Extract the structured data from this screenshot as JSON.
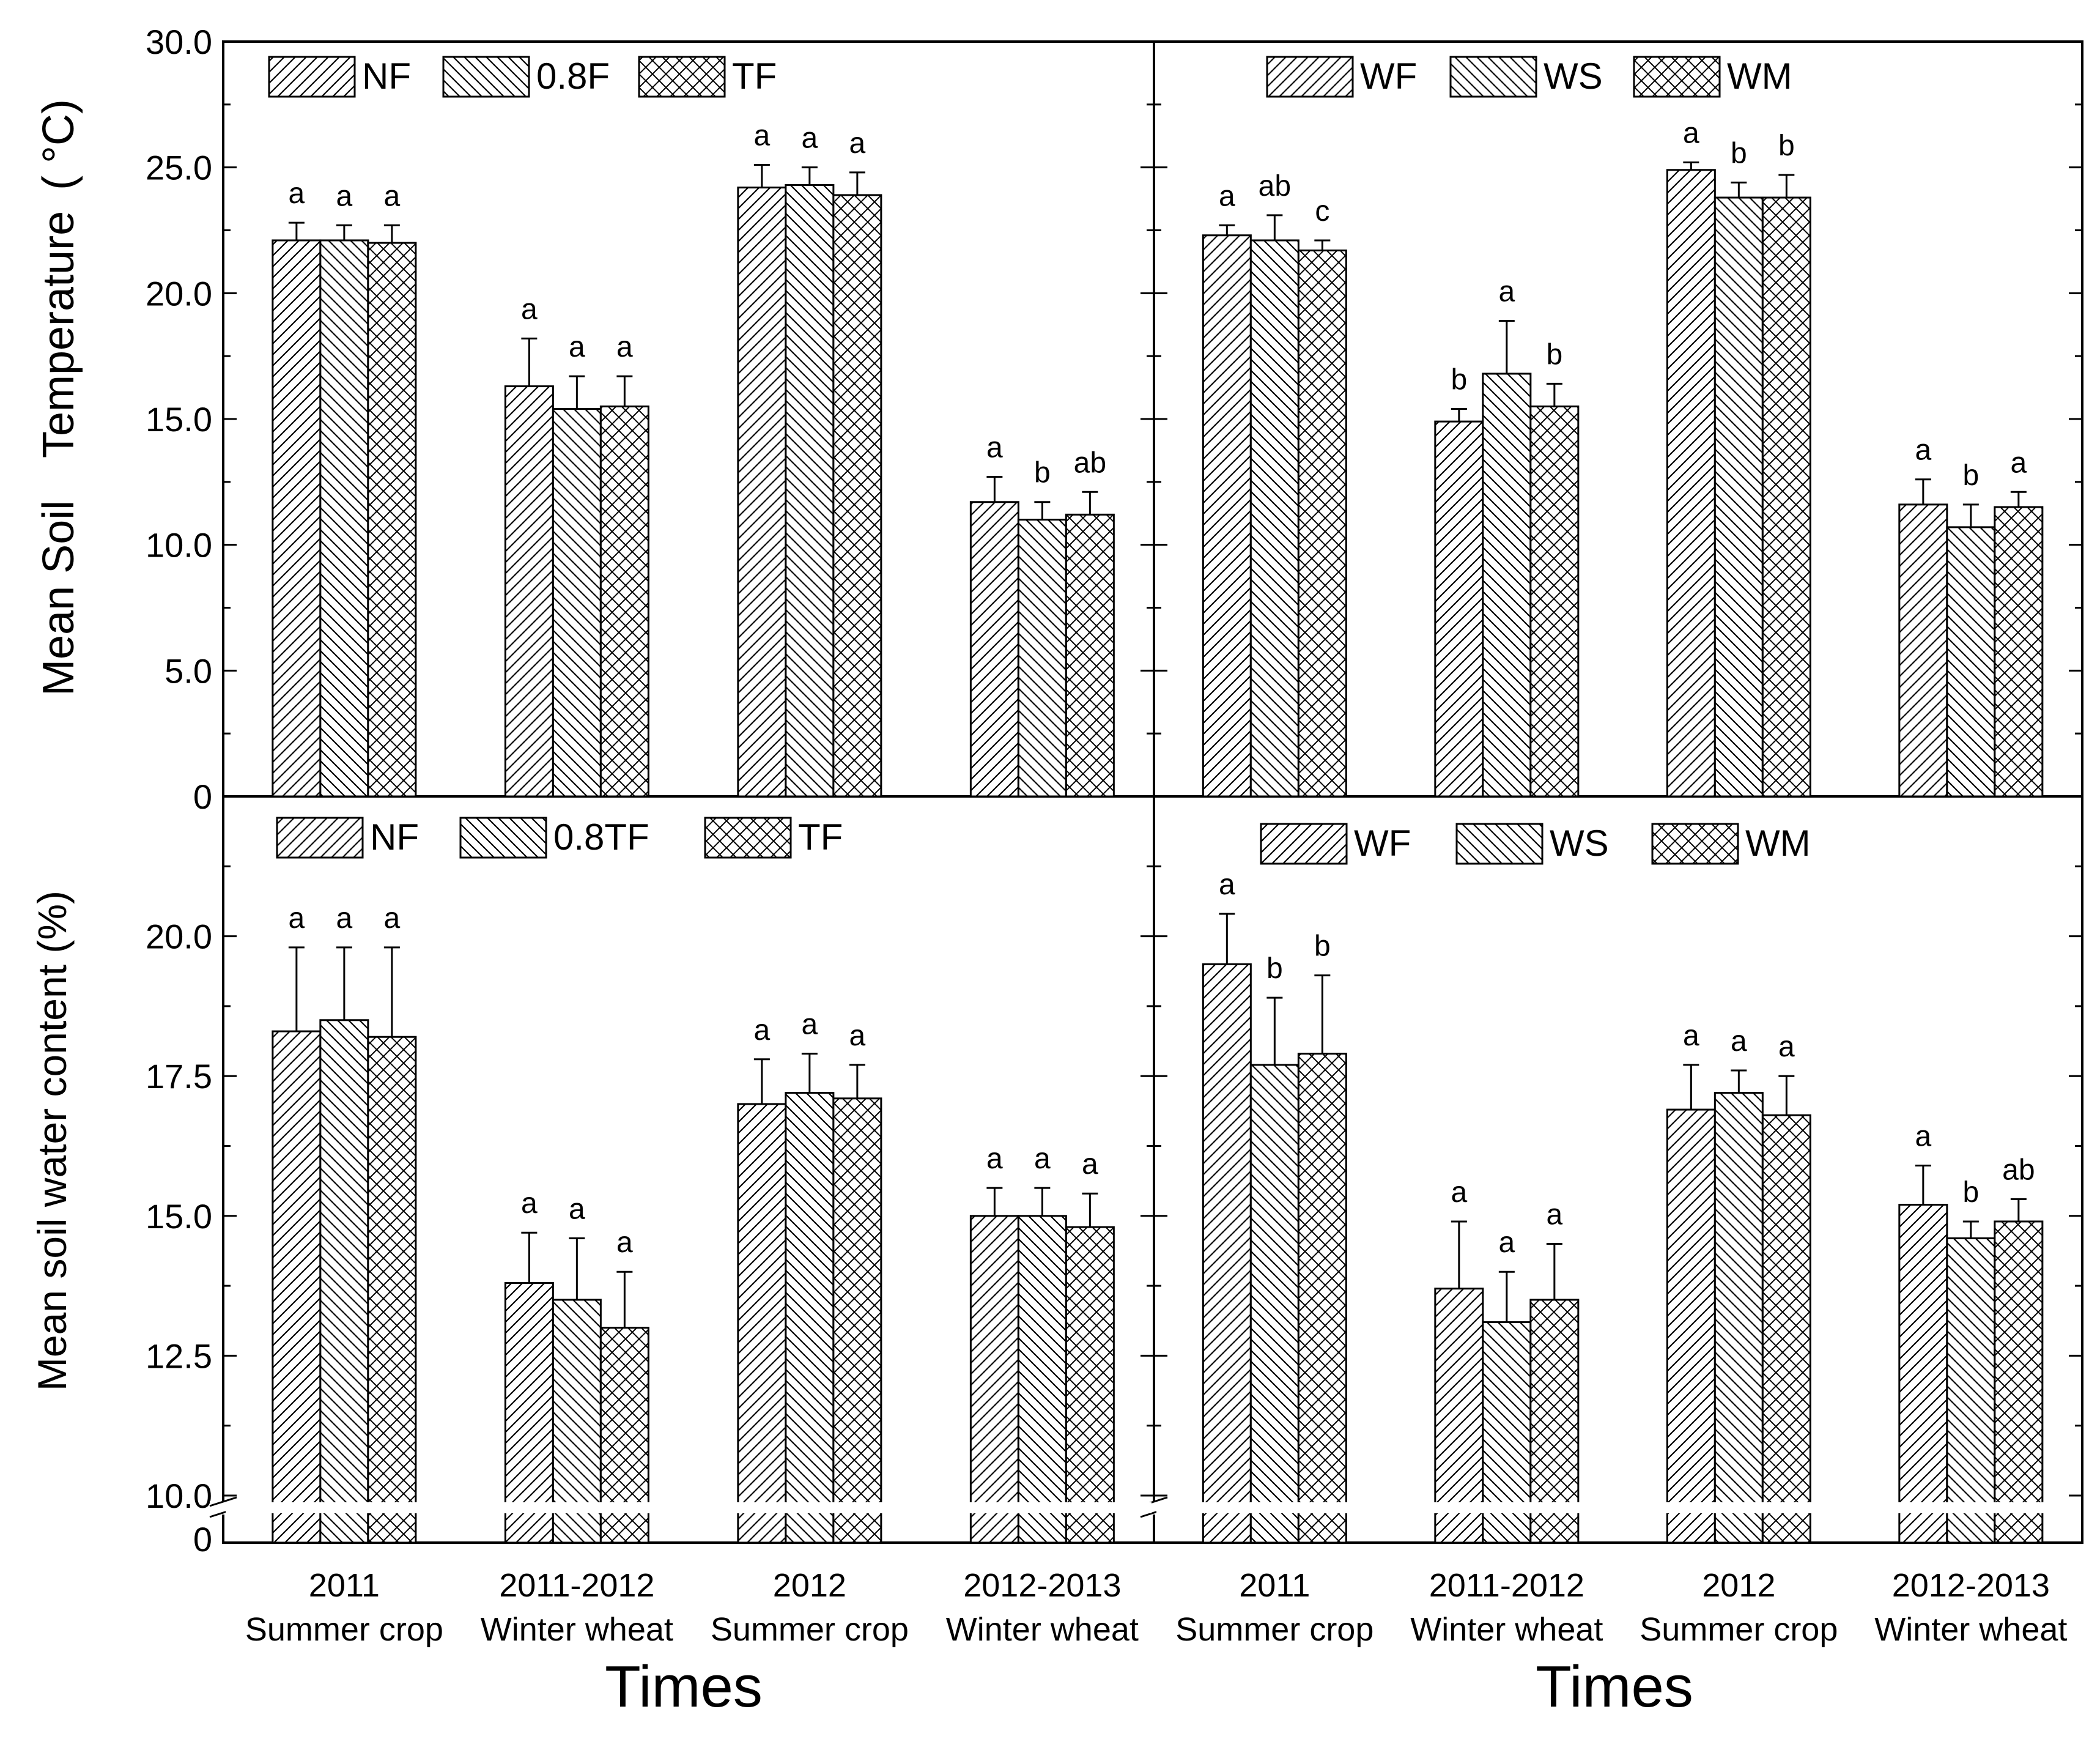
{
  "categories": [
    {
      "line1": "2011",
      "line2": "Summer crop"
    },
    {
      "line1": "2011-2012",
      "line2": "Winter wheat"
    },
    {
      "line1": "2012",
      "line2": "Summer crop"
    },
    {
      "line1": "2012-2013",
      "line2": "Winter wheat"
    }
  ],
  "xlabel": "Times",
  "ylabel_top_a": "Mean Soil",
  "ylabel_top_b": "Temperature",
  "ylabel_top_c": "( °C)",
  "ylabel_bottom": "Mean soil water content (%)",
  "chart_data": [
    {
      "panel": "a",
      "type": "bar",
      "ylim": [
        0,
        30
      ],
      "yticks": [
        "0",
        "5.0",
        "10.0",
        "15.0",
        "20.0",
        "25.0",
        "30.0"
      ],
      "series": [
        {
          "name": "NF",
          "values": [
            22.1,
            16.3,
            24.2,
            11.7
          ],
          "errors": [
            0.7,
            1.9,
            0.9,
            1.0
          ],
          "letters": [
            "a",
            "a",
            "a",
            "a"
          ]
        },
        {
          "name": "0.8F",
          "values": [
            22.1,
            15.4,
            24.3,
            11.0
          ],
          "errors": [
            0.6,
            1.3,
            0.7,
            0.7
          ],
          "letters": [
            "a",
            "a",
            "a",
            "b"
          ]
        },
        {
          "name": "TF",
          "values": [
            22.0,
            15.5,
            23.9,
            11.2
          ],
          "errors": [
            0.7,
            1.2,
            0.9,
            0.9
          ],
          "letters": [
            "a",
            "a",
            "a",
            "ab"
          ]
        }
      ]
    },
    {
      "panel": "b",
      "type": "bar",
      "ylim": [
        0,
        30
      ],
      "series": [
        {
          "name": "WF",
          "values": [
            22.3,
            14.9,
            24.9,
            11.6
          ],
          "errors": [
            0.4,
            0.5,
            0.3,
            1.0
          ],
          "letters": [
            "a",
            "b",
            "a",
            "a"
          ]
        },
        {
          "name": "WS",
          "values": [
            22.1,
            16.8,
            23.8,
            10.7
          ],
          "errors": [
            1.0,
            2.1,
            0.6,
            0.9
          ],
          "letters": [
            "ab",
            "a",
            "b",
            "b"
          ]
        },
        {
          "name": "WM",
          "values": [
            21.7,
            15.5,
            23.8,
            11.5
          ],
          "errors": [
            0.4,
            0.9,
            0.9,
            0.6
          ],
          "letters": [
            "c",
            "b",
            "b",
            "a"
          ]
        }
      ]
    },
    {
      "panel": "c",
      "type": "bar",
      "ylim": [
        10,
        22.5
      ],
      "axis_break": true,
      "yticks": [
        "10.0",
        "12.5",
        "15.0",
        "17.5",
        "20.0"
      ],
      "ytick_break": "0",
      "series": [
        {
          "name": "NF",
          "values": [
            18.3,
            13.8,
            17.0,
            15.0
          ],
          "errors": [
            1.5,
            0.9,
            0.8,
            0.5
          ],
          "letters": [
            "a",
            "a",
            "a",
            "a"
          ]
        },
        {
          "name": "0.8TF",
          "values": [
            18.5,
            13.5,
            17.2,
            15.0
          ],
          "errors": [
            1.3,
            1.1,
            0.7,
            0.5
          ],
          "letters": [
            "a",
            "a",
            "a",
            "a"
          ]
        },
        {
          "name": "TF",
          "values": [
            18.2,
            13.0,
            17.1,
            14.8
          ],
          "errors": [
            1.6,
            1.0,
            0.6,
            0.6
          ],
          "letters": [
            "a",
            "a",
            "a",
            "a"
          ]
        }
      ]
    },
    {
      "panel": "d",
      "type": "bar",
      "ylim": [
        10,
        22.5
      ],
      "axis_break": true,
      "series": [
        {
          "name": "WF",
          "values": [
            19.5,
            13.7,
            16.9,
            15.2
          ],
          "errors": [
            0.9,
            1.2,
            0.8,
            0.7
          ],
          "letters": [
            "a",
            "a",
            "a",
            "a"
          ]
        },
        {
          "name": "WS",
          "values": [
            17.7,
            13.1,
            17.2,
            14.6
          ],
          "errors": [
            1.2,
            0.9,
            0.4,
            0.3
          ],
          "letters": [
            "b",
            "a",
            "a",
            "b"
          ]
        },
        {
          "name": "WM",
          "values": [
            17.9,
            13.5,
            16.8,
            14.9
          ],
          "errors": [
            1.4,
            1.0,
            0.7,
            0.4
          ],
          "letters": [
            "b",
            "a",
            "a",
            "ab"
          ]
        }
      ]
    }
  ]
}
